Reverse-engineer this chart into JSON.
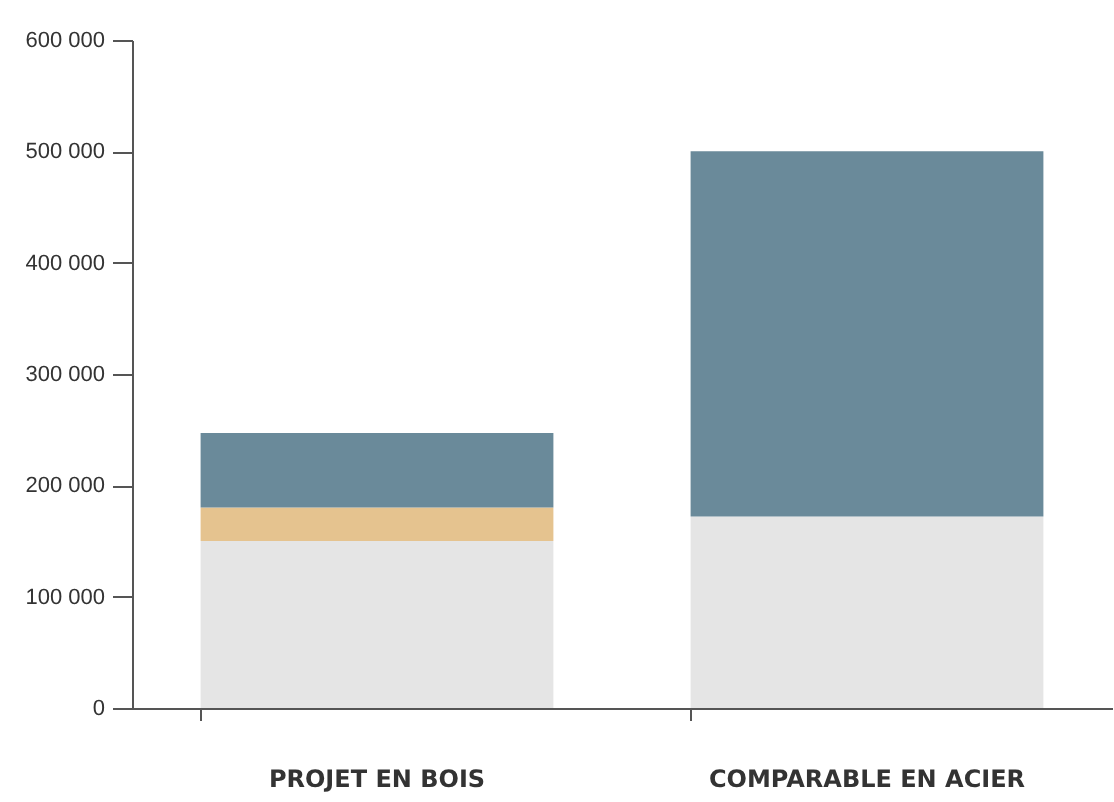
{
  "chart_data": {
    "type": "bar",
    "stacked": true,
    "categories": [
      "PROJET EN BOIS",
      "COMPARABLE EN ACIER"
    ],
    "series": [
      {
        "color": "#e5e5e5",
        "values": [
          150000,
          172000
        ]
      },
      {
        "color": "#e5c38f",
        "values": [
          30000,
          0
        ]
      },
      {
        "color": "#6a8a9a",
        "values": [
          67000,
          328000
        ]
      }
    ],
    "ylim": [
      0,
      600000
    ],
    "yticks": [
      0,
      {
        "value": 100000,
        "label": "100 000"
      },
      {
        "value": 200000,
        "label": "200 000"
      },
      {
        "value": 300000,
        "label": "300 000"
      },
      {
        "value": 400000,
        "label": "400 000"
      },
      {
        "value": 500000,
        "label": "500 000"
      },
      {
        "value": 600000,
        "label": "600 000"
      }
    ],
    "grid": false,
    "legend": false
  }
}
